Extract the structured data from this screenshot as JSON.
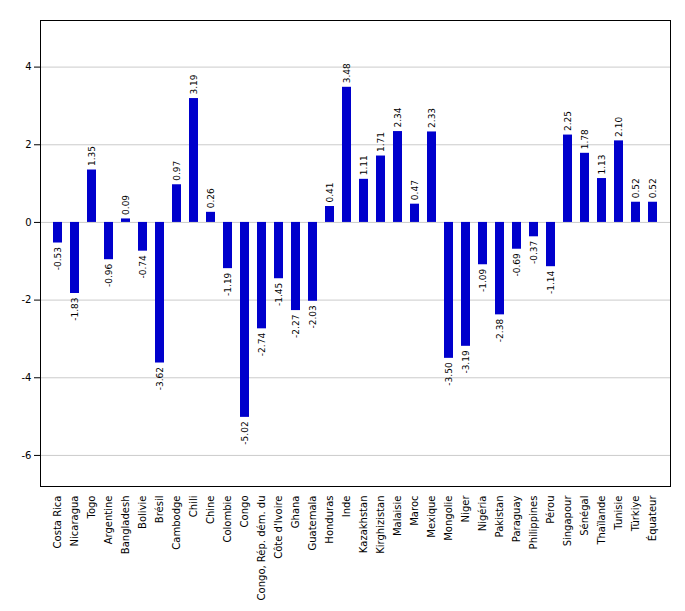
{
  "chart_data": {
    "type": "bar",
    "categories": [
      "Costa Rica",
      "Nicaragua",
      "Togo",
      "Argentine",
      "Bangladesh",
      "Bolivie",
      "Brésil",
      "Cambodge",
      "Chili",
      "Chine",
      "Colombie",
      "Congo",
      "Congo, Rép. dém. du",
      "Côte d'Ivoire",
      "Ghana",
      "Guatemala",
      "Honduras",
      "Inde",
      "Kazakhstan",
      "Kirghizistan",
      "Malaisie",
      "Maroc",
      "Mexique",
      "Mongolie",
      "Niger",
      "Nigéria",
      "Pakistan",
      "Paraguay",
      "Philippines",
      "Pérou",
      "Singapour",
      "Sénégal",
      "Thaïlande",
      "Tunisie",
      "Türkiye",
      "Équateur"
    ],
    "values": [
      -0.53,
      -1.83,
      1.35,
      -0.96,
      0.09,
      -0.74,
      -3.62,
      0.97,
      3.19,
      0.26,
      -1.19,
      -5.02,
      -2.74,
      -1.45,
      -2.27,
      -2.03,
      0.41,
      3.48,
      1.11,
      1.71,
      2.34,
      0.47,
      2.33,
      -3.5,
      -3.19,
      -1.09,
      -2.38,
      -0.69,
      -0.37,
      -1.14,
      2.25,
      1.78,
      1.13,
      2.1,
      0.52,
      0.52
    ],
    "value_labels": [
      "-0.53",
      "-1.83",
      "1.35",
      "-0.96",
      "0.09",
      "-0.74",
      "-3.62",
      "0.97",
      "3.19",
      "0.26",
      "-1.19",
      "-5.02",
      "-2.74",
      "-1.45",
      "-2.27",
      "-2.03",
      "0.41",
      "3.48",
      "1.11",
      "1.71",
      "2.34",
      "0.47",
      "2.33",
      "-3.50",
      "-3.19",
      "-1.09",
      "-2.38",
      "-0.69",
      "-0.37",
      "-1.14",
      "2.25",
      "1.78",
      "1.13",
      "2.10",
      "0.52",
      "0.52"
    ],
    "color": "#0000cc",
    "ylim": [
      -6.8,
      5.2
    ],
    "yticks": [
      -6,
      -4,
      -2,
      0,
      2,
      4
    ],
    "grid": true,
    "data_labels": true
  }
}
